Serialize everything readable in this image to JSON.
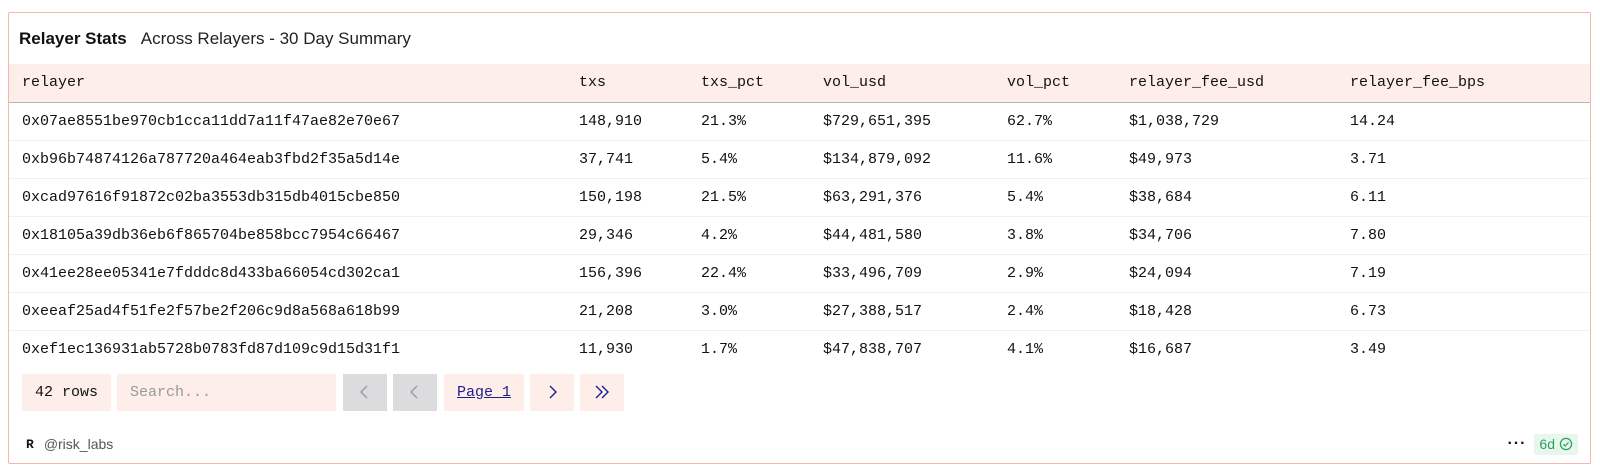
{
  "header": {
    "title": "Relayer Stats",
    "subtitle": "Across Relayers - 30 Day Summary"
  },
  "table": {
    "columns": [
      "relayer",
      "txs",
      "txs_pct",
      "vol_usd",
      "vol_pct",
      "relayer_fee_usd",
      "relayer_fee_bps"
    ],
    "rows": [
      [
        "0x07ae8551be970cb1cca11dd7a11f47ae82e70e67",
        "148,910",
        "21.3%",
        "$729,651,395",
        "62.7%",
        "$1,038,729",
        "14.24"
      ],
      [
        "0xb96b74874126a787720a464eab3fbd2f35a5d14e",
        "37,741",
        "5.4%",
        "$134,879,092",
        "11.6%",
        "$49,973",
        "3.71"
      ],
      [
        "0xcad97616f91872c02ba3553db315db4015cbe850",
        "150,198",
        "21.5%",
        "$63,291,376",
        "5.4%",
        "$38,684",
        "6.11"
      ],
      [
        "0x18105a39db36eb6f865704be858bcc7954c66467",
        "29,346",
        "4.2%",
        "$44,481,580",
        "3.8%",
        "$34,706",
        "7.80"
      ],
      [
        "0x41ee28ee05341e7fdddc8d433ba66054cd302ca1",
        "156,396",
        "22.4%",
        "$33,496,709",
        "2.9%",
        "$24,094",
        "7.19"
      ],
      [
        "0xeeaf25ad4f51fe2f57be2f206c9d8a568a618b99",
        "21,208",
        "3.0%",
        "$27,388,517",
        "2.4%",
        "$18,428",
        "6.73"
      ],
      [
        "0xef1ec136931ab5728b0783fd87d109c9d15d31f1",
        "11,930",
        "1.7%",
        "$47,838,707",
        "4.1%",
        "$16,687",
        "3.49"
      ]
    ]
  },
  "pager": {
    "rows_count": "42 rows",
    "search_placeholder": "Search...",
    "page_label": "Page 1"
  },
  "footer": {
    "avatar_letter": "R",
    "user": "@risk_labs",
    "more_label": "···",
    "age": "6d"
  },
  "colors": {
    "accent_bg": "#fdeeea",
    "border": "#f2b8a9",
    "link": "#1f1f8a",
    "status_green": "#2e9e5b"
  },
  "icons": [
    "chevron-first-icon",
    "chevron-left-icon",
    "chevron-right-icon",
    "chevron-last-icon",
    "more-icon",
    "check-circle-icon"
  ]
}
